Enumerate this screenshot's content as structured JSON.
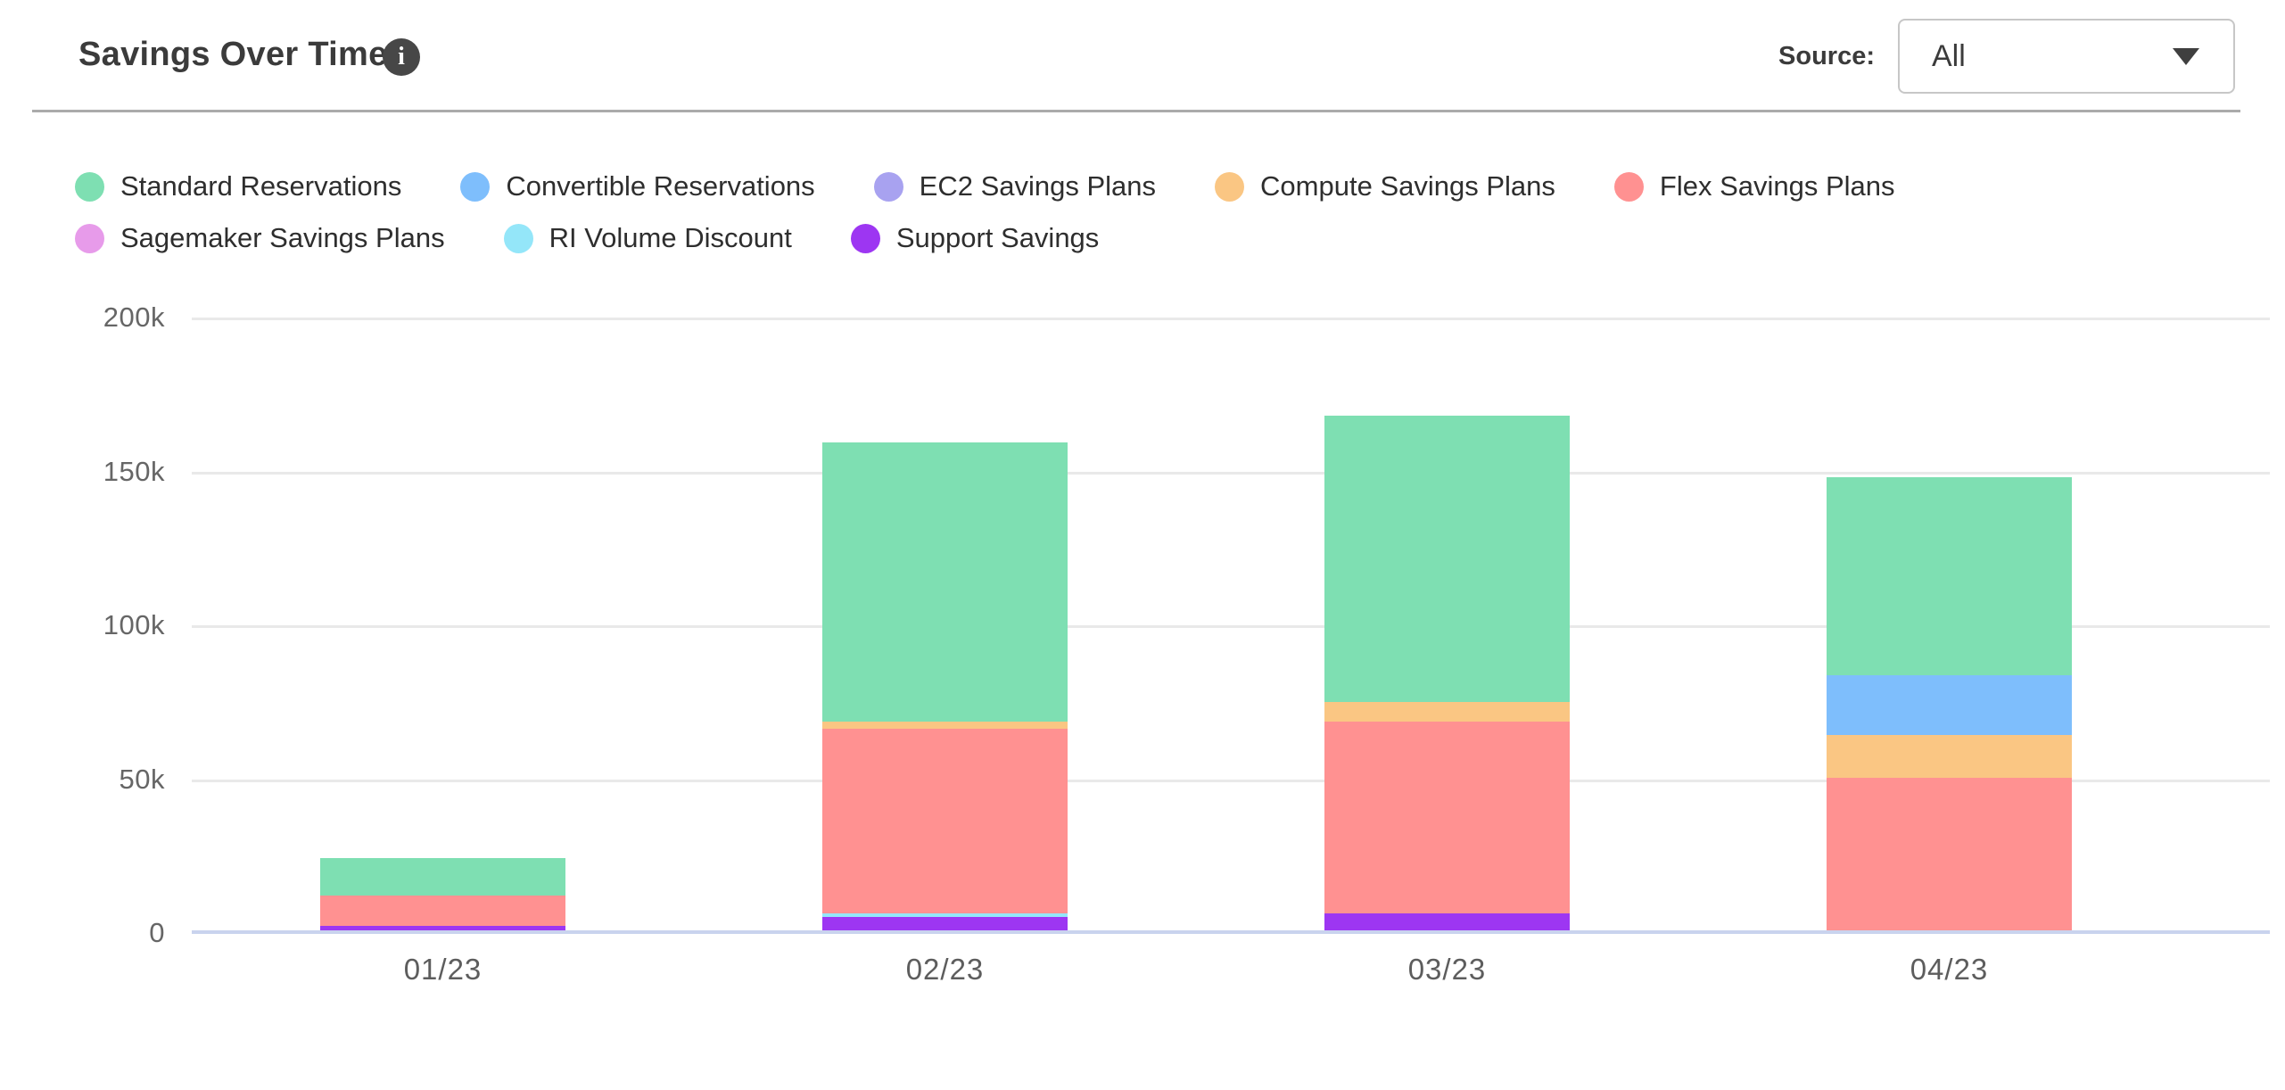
{
  "header": {
    "title": "Savings Over Time",
    "info_glyph": "i",
    "source_label": "Source:",
    "source_value": "All"
  },
  "chart_data": {
    "type": "bar",
    "variant": "stacked",
    "title": "Savings Over Time",
    "xlabel": "",
    "ylabel": "",
    "categories": [
      "01/23",
      "02/23",
      "03/23",
      "04/23"
    ],
    "series": [
      {
        "name": "Standard Reservations",
        "color": "#7edfb2",
        "values": [
          12400,
          90800,
          93100,
          64400
        ]
      },
      {
        "name": "Convertible Reservations",
        "color": "#7ebefc",
        "values": [
          0,
          0,
          0,
          19400
        ]
      },
      {
        "name": "EC2 Savings Plans",
        "color": "#a8a2f0",
        "values": [
          0,
          0,
          0,
          0
        ]
      },
      {
        "name": "Compute Savings Plans",
        "color": "#fac683",
        "values": [
          0,
          2200,
          6500,
          13800
        ]
      },
      {
        "name": "Flex Savings Plans",
        "color": "#ff9191",
        "values": [
          9800,
          60100,
          62400,
          49600
        ]
      },
      {
        "name": "Sagemaker Savings Plans",
        "color": "#e79bea",
        "values": [
          0,
          0,
          0,
          0
        ]
      },
      {
        "name": "RI Volume Discount",
        "color": "#94e6f9",
        "values": [
          0,
          1200,
          0,
          0
        ]
      },
      {
        "name": "Support Savings",
        "color": "#9d36f2",
        "values": [
          1400,
          4300,
          5400,
          0
        ]
      }
    ],
    "stack_order": "reverse-of-legend (Support Savings at bottom, Standard Reservations on top)",
    "totals": [
      23600,
      158600,
      167400,
      147200
    ],
    "ylim": [
      0,
      200000
    ],
    "yticks": [
      {
        "label": "200k",
        "value": 200000
      },
      {
        "label": "150k",
        "value": 150000
      },
      {
        "label": "100k",
        "value": 100000
      },
      {
        "label": "50k",
        "value": 50000
      },
      {
        "label": "0",
        "value": 0
      }
    ],
    "grid": "horizontal",
    "legend_position": "top-left",
    "legend_wrap_after": 5
  },
  "colors": {
    "gridline": "#e9e9e9",
    "baseline": "#c9d3ee",
    "axis_text": "#666666",
    "legend_text": "#2e2e2e",
    "title_text": "#3b3b3b",
    "divider": "#ababab"
  }
}
